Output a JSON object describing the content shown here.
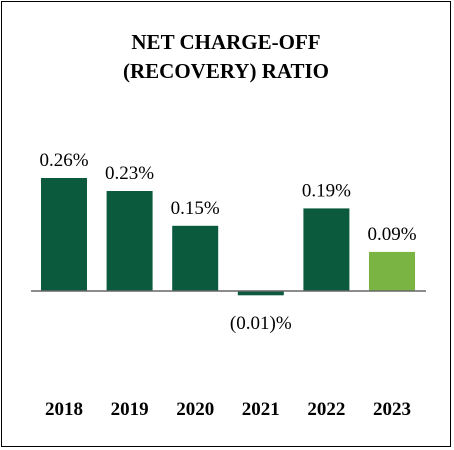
{
  "chart_data": {
    "type": "bar",
    "title_lines": [
      "NET CHARGE-OFF",
      "(RECOVERY) RATIO"
    ],
    "categories": [
      "2018",
      "2019",
      "2020",
      "2021",
      "2022",
      "2023"
    ],
    "values": [
      0.26,
      0.23,
      0.15,
      -0.01,
      0.19,
      0.09
    ],
    "value_labels": [
      "0.26%",
      "0.23%",
      "0.15%",
      "(0.01)%",
      "0.19%",
      "0.09%"
    ],
    "colors": [
      "#0b5a3e",
      "#0b5a3e",
      "#0b5a3e",
      "#0b5a3e",
      "#0b5a3e",
      "#7ab442"
    ],
    "ylim": [
      -0.01,
      0.26
    ],
    "grid": false,
    "legend": "none"
  }
}
